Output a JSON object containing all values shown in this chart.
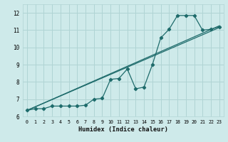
{
  "xlabel": "Humidex (Indice chaleur)",
  "bg_color": "#ceeaea",
  "grid_color": "#b0d4d4",
  "line_color": "#1e6b6b",
  "xlim": [
    -0.5,
    23.5
  ],
  "ylim": [
    6.0,
    12.5
  ],
  "xticks": [
    0,
    1,
    2,
    3,
    4,
    5,
    6,
    7,
    8,
    9,
    10,
    11,
    12,
    13,
    14,
    15,
    16,
    17,
    18,
    19,
    20,
    21,
    22,
    23
  ],
  "yticks": [
    6,
    7,
    8,
    9,
    10,
    11,
    12
  ],
  "line_straight1": [
    [
      0,
      23
    ],
    [
      6.35,
      11.25
    ]
  ],
  "line_straight2": [
    [
      0,
      23
    ],
    [
      6.35,
      11.15
    ]
  ],
  "line_zigzag_x": [
    0,
    1,
    2,
    3,
    4,
    5,
    6,
    7,
    8,
    9,
    10,
    11,
    12,
    13,
    14,
    15,
    16,
    17,
    18,
    19,
    20,
    21,
    22,
    23
  ],
  "line_zigzag_y": [
    6.35,
    6.45,
    6.45,
    6.6,
    6.6,
    6.6,
    6.6,
    6.65,
    7.0,
    7.05,
    8.15,
    8.2,
    8.75,
    7.6,
    7.7,
    9.0,
    10.55,
    11.05,
    11.85,
    11.85,
    11.85,
    11.0,
    11.05,
    11.2
  ]
}
